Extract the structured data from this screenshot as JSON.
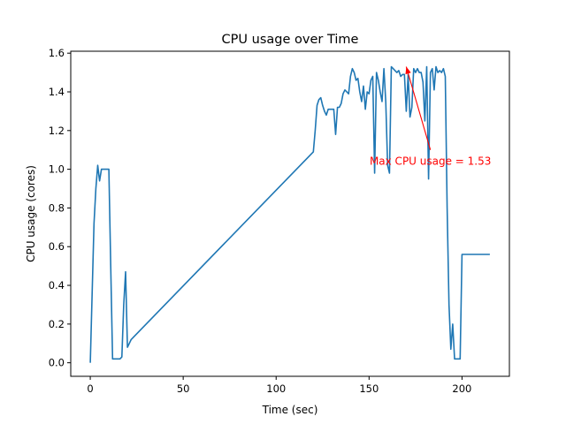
{
  "chart_data": {
    "type": "line",
    "title": "CPU usage over Time",
    "xlabel": "Time (sec)",
    "ylabel": "CPU usage (cores)",
    "xlim": [
      -10.5,
      225.5
    ],
    "ylim": [
      -0.07,
      1.61
    ],
    "xticks": [
      0,
      50,
      100,
      150,
      200
    ],
    "yticks": [
      0.0,
      0.2,
      0.4,
      0.6,
      0.8,
      1.0,
      1.2,
      1.4,
      1.6
    ],
    "ytick_labels": [
      "0.0",
      "0.2",
      "0.4",
      "0.6",
      "0.8",
      "1.0",
      "1.2",
      "1.4",
      "1.6"
    ],
    "grid": false,
    "line_color": "#1f77b4",
    "series": [
      {
        "x": [
          0,
          2,
          3,
          4,
          5,
          6,
          7,
          8,
          10,
          11,
          12,
          13,
          14,
          15,
          16,
          17,
          18,
          19,
          20,
          21,
          22,
          120,
          121,
          122,
          123,
          124,
          125,
          126,
          127,
          128,
          129,
          130,
          131,
          132,
          133,
          134,
          135,
          136,
          137,
          138,
          139,
          140,
          141,
          142,
          143,
          144,
          145,
          146,
          147,
          148,
          149,
          150,
          151,
          152,
          153,
          154,
          155,
          156,
          157,
          158,
          159,
          160,
          161,
          162,
          163,
          164,
          165,
          166,
          167,
          168,
          169,
          170,
          171,
          172,
          173,
          174,
          175,
          176,
          177,
          178,
          179,
          180,
          181,
          182,
          183,
          184,
          185,
          186,
          187,
          188,
          189,
          190,
          191,
          192,
          193,
          194,
          195,
          196,
          197,
          198,
          199,
          200,
          201,
          202,
          203,
          204,
          205,
          206,
          207,
          208,
          209,
          210,
          211,
          212,
          213,
          214,
          215
        ],
        "y": [
          0.0,
          0.72,
          0.9,
          1.02,
          0.94,
          1.0,
          1.0,
          1.0,
          1.0,
          0.5,
          0.02,
          0.02,
          0.02,
          0.02,
          0.02,
          0.03,
          0.3,
          0.47,
          0.08,
          0.1,
          0.12,
          1.09,
          1.2,
          1.33,
          1.36,
          1.37,
          1.33,
          1.3,
          1.28,
          1.31,
          1.31,
          1.31,
          1.31,
          1.18,
          1.32,
          1.32,
          1.34,
          1.39,
          1.41,
          1.4,
          1.39,
          1.48,
          1.52,
          1.5,
          1.46,
          1.47,
          1.4,
          1.35,
          1.43,
          1.31,
          1.4,
          1.39,
          1.46,
          1.48,
          0.98,
          1.5,
          1.46,
          1.4,
          1.35,
          1.52,
          1.35,
          1.02,
          0.98,
          1.53,
          1.52,
          1.51,
          1.5,
          1.51,
          1.48,
          1.49,
          1.49,
          1.3,
          1.49,
          1.27,
          1.32,
          1.52,
          1.5,
          1.52,
          1.5,
          1.5,
          1.45,
          1.25,
          1.53,
          0.95,
          1.5,
          1.52,
          1.41,
          1.53,
          1.5,
          1.51,
          1.5,
          1.52,
          1.48,
          0.8,
          0.3,
          0.07,
          0.2,
          0.02,
          0.02,
          0.02,
          0.02,
          0.56,
          0.56,
          0.56,
          0.56,
          0.56,
          0.56,
          0.56,
          0.56,
          0.56,
          0.56,
          0.56,
          0.56,
          0.56,
          0.56,
          0.56,
          0.56
        ]
      }
    ],
    "annotation": {
      "text": "Max CPU usage = 1.53",
      "color": "#ff0000",
      "point": [
        170,
        1.53
      ],
      "text_pos": [
        183,
        1.1
      ]
    }
  }
}
